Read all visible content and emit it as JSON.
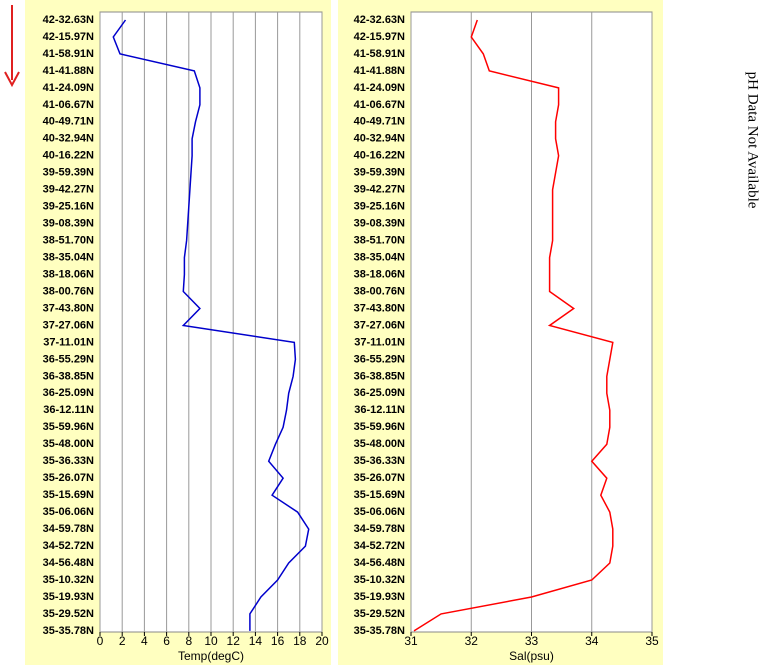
{
  "chart_data": [
    {
      "type": "line",
      "orientation": "horizontal",
      "xlabel": "Temp(degC)",
      "categories": [
        "42-32.63N",
        "42-15.97N",
        "41-58.91N",
        "41-41.88N",
        "41-24.09N",
        "41-06.67N",
        "40-49.71N",
        "40-32.94N",
        "40-16.22N",
        "39-59.39N",
        "39-42.27N",
        "39-25.16N",
        "39-08.39N",
        "38-51.70N",
        "38-35.04N",
        "38-18.06N",
        "38-00.76N",
        "37-43.80N",
        "37-27.06N",
        "37-11.01N",
        "36-55.29N",
        "36-38.85N",
        "36-25.09N",
        "36-12.11N",
        "35-59.96N",
        "35-48.00N",
        "35-36.33N",
        "35-26.07N",
        "35-15.69N",
        "35-06.06N",
        "34-59.78N",
        "34-52.72N",
        "34-56.48N",
        "35-10.32N",
        "35-19.93N",
        "35-29.52N",
        "35-35.78N"
      ],
      "series": [
        {
          "name": "Temp",
          "color": "#0000cc",
          "values": [
            2.3,
            1.2,
            1.8,
            8.5,
            9.0,
            9.0,
            8.6,
            8.3,
            8.3,
            8.2,
            8.1,
            8.0,
            7.9,
            7.8,
            7.6,
            7.6,
            7.5,
            9.0,
            7.5,
            17.5,
            17.6,
            17.4,
            17.0,
            16.8,
            16.5,
            15.8,
            15.2,
            16.5,
            15.5,
            17.8,
            18.8,
            18.5,
            17.0,
            16.0,
            14.5,
            13.5,
            13.5
          ]
        }
      ],
      "xlim": [
        0,
        20
      ],
      "xticks": [
        0,
        2,
        4,
        6,
        8,
        10,
        12,
        14,
        16,
        18,
        20
      ],
      "grid": true
    },
    {
      "type": "line",
      "orientation": "horizontal",
      "xlabel": "Sal(psu)",
      "categories": [
        "42-32.63N",
        "42-15.97N",
        "41-58.91N",
        "41-41.88N",
        "41-24.09N",
        "41-06.67N",
        "40-49.71N",
        "40-32.94N",
        "40-16.22N",
        "39-59.39N",
        "39-42.27N",
        "39-25.16N",
        "39-08.39N",
        "38-51.70N",
        "38-35.04N",
        "38-18.06N",
        "38-00.76N",
        "37-43.80N",
        "37-27.06N",
        "37-11.01N",
        "36-55.29N",
        "36-38.85N",
        "36-25.09N",
        "36-12.11N",
        "35-59.96N",
        "35-48.00N",
        "35-36.33N",
        "35-26.07N",
        "35-15.69N",
        "35-06.06N",
        "34-59.78N",
        "34-52.72N",
        "34-56.48N",
        "35-10.32N",
        "35-19.93N",
        "35-29.52N",
        "35-35.78N"
      ],
      "series": [
        {
          "name": "Sal",
          "color": "#ff0000",
          "values": [
            32.1,
            32.0,
            32.2,
            32.3,
            33.45,
            33.45,
            33.4,
            33.4,
            33.45,
            33.4,
            33.35,
            33.35,
            33.35,
            33.35,
            33.3,
            33.3,
            33.3,
            33.7,
            33.3,
            34.35,
            34.3,
            34.25,
            34.25,
            34.3,
            34.3,
            34.25,
            34.0,
            34.25,
            34.15,
            34.3,
            34.35,
            34.35,
            34.3,
            34.0,
            33.0,
            31.5,
            31.05
          ]
        }
      ],
      "xlim": [
        31,
        35
      ],
      "xticks": [
        31,
        32,
        33,
        34,
        35
      ],
      "grid": true
    }
  ],
  "side_text": "pH Data Not Available"
}
